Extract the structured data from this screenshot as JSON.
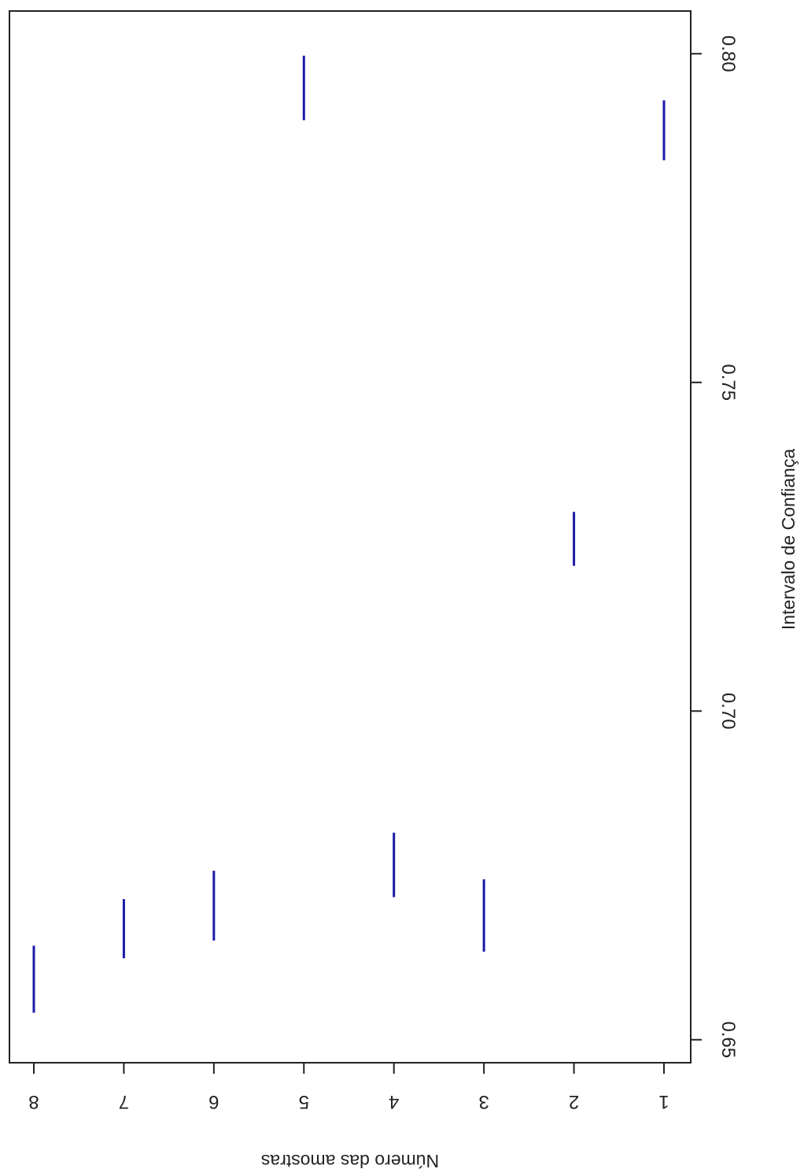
{
  "chart_data": {
    "type": "errorbar",
    "orientation": "rotated",
    "xlabel": "Número das amostras",
    "ylabel": "Intervalo de Confiança",
    "categories": [
      "1",
      "2",
      "3",
      "4",
      "5",
      "6",
      "7",
      "8"
    ],
    "ylim": [
      0.6465,
      0.8065
    ],
    "y_ticks": [
      "0.65",
      "0.70",
      "0.75",
      "0.80"
    ],
    "y_tick_values": [
      0.65,
      0.7,
      0.75,
      0.8
    ],
    "intervals": [
      {
        "sample": "1",
        "lower": 0.7838,
        "upper": 0.7929
      },
      {
        "sample": "2",
        "lower": 0.7221,
        "upper": 0.7303
      },
      {
        "sample": "3",
        "lower": 0.6634,
        "upper": 0.6744
      },
      {
        "sample": "4",
        "lower": 0.6717,
        "upper": 0.6815
      },
      {
        "sample": "5",
        "lower": 0.7899,
        "upper": 0.7997
      },
      {
        "sample": "6",
        "lower": 0.6651,
        "upper": 0.6757
      },
      {
        "sample": "7",
        "lower": 0.6624,
        "upper": 0.6714
      },
      {
        "sample": "8",
        "lower": 0.6541,
        "upper": 0.6643
      }
    ],
    "line_color": "#1a1aa6",
    "grid": false
  }
}
